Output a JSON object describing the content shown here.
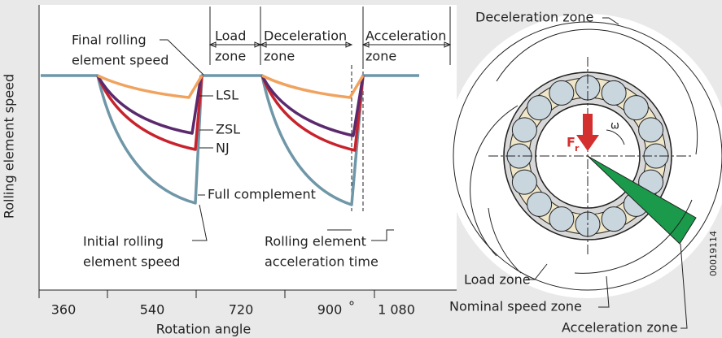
{
  "chart": {
    "y_axis_label": "Rolling element speed",
    "x_axis_label": "Rotation angle",
    "x_ticks": [
      "360",
      "540",
      "720",
      "900",
      "°",
      "1 080"
    ],
    "annotations": {
      "final_speed": [
        "Final rolling",
        "element speed"
      ],
      "load_zone": [
        "Load",
        "zone"
      ],
      "deceleration_zone": [
        "Deceleration",
        "zone"
      ],
      "acceleration_zone": [
        "Acceleration",
        "zone"
      ],
      "curves": [
        "LSL",
        "ZSL",
        "NJ",
        "Full complement"
      ],
      "initial_speed": [
        "Initial rolling",
        "element speed"
      ],
      "acceleration_time": [
        "Rolling element",
        "acceleration time"
      ]
    }
  },
  "bearing": {
    "deceleration_zone": "Deceleration zone",
    "omega": "ω",
    "force": "F",
    "force_sub": "r",
    "load_zone": "Load zone",
    "nominal_speed_zone": "Nominal speed zone",
    "acceleration_zone": "Acceleration zone"
  },
  "figure_id": "00019114"
}
